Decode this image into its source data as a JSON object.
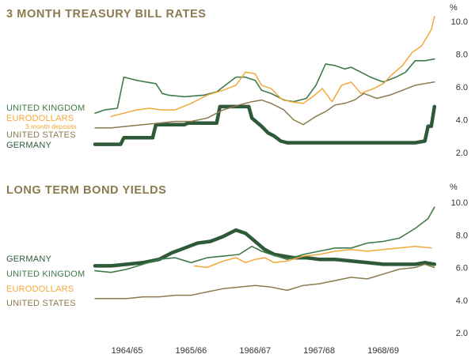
{
  "colors": {
    "uk": "#3f7a4a",
    "eurodollars": "#f2a83a",
    "us": "#8a7a4e",
    "germany": "#2f5a3a",
    "title": "#8a7a4e",
    "tick": "#333333"
  },
  "chart_data": [
    {
      "type": "line",
      "title": "3 MONTH TREASURY BILL RATES",
      "ylabel": "%",
      "ylim": [
        2.0,
        10.0
      ],
      "ytick_labels": [
        "10.0",
        "8.0",
        "6.0",
        "4.0",
        "2.0"
      ],
      "xlim": [
        1964.0,
        1969.5
      ],
      "series": [
        {
          "name": "UNITED KINGDOM",
          "color": "#3f7a4a",
          "x": [
            1964.0,
            1964.15,
            1964.35,
            1964.45,
            1964.55,
            1964.65,
            1964.8,
            1964.95,
            1965.05,
            1965.15,
            1965.4,
            1965.7,
            1965.9,
            1966.0,
            1966.2,
            1966.35,
            1966.5,
            1966.6,
            1966.75,
            1966.85,
            1966.95,
            1967.1,
            1967.3,
            1967.45,
            1967.6,
            1967.75,
            1967.9,
            1968.0,
            1968.15,
            1968.3,
            1968.5,
            1968.7,
            1968.85,
            1969.0,
            1969.15,
            1969.3
          ],
          "y": [
            4.4,
            4.6,
            4.7,
            6.6,
            6.5,
            6.4,
            6.3,
            6.2,
            5.6,
            5.5,
            5.4,
            5.5,
            5.7,
            6.0,
            6.6,
            6.6,
            6.4,
            5.8,
            5.6,
            5.4,
            5.2,
            5.1,
            5.3,
            6.1,
            7.4,
            7.3,
            7.1,
            7.2,
            6.9,
            6.6,
            6.3,
            6.6,
            6.9,
            7.6,
            7.6,
            7.7
          ]
        },
        {
          "name": "EURODOLLARS",
          "color": "#f2a83a",
          "x": [
            1964.25,
            1964.45,
            1964.65,
            1964.85,
            1965.05,
            1965.25,
            1965.5,
            1965.75,
            1966.0,
            1966.2,
            1966.35,
            1966.5,
            1966.6,
            1966.75,
            1966.9,
            1967.05,
            1967.25,
            1967.4,
            1967.55,
            1967.7,
            1967.85,
            1968.0,
            1968.15,
            1968.35,
            1968.5,
            1968.65,
            1968.8,
            1968.95,
            1969.1,
            1969.25,
            1969.3
          ],
          "y": [
            4.2,
            4.4,
            4.6,
            4.7,
            4.6,
            4.6,
            5.0,
            5.5,
            5.8,
            6.1,
            6.9,
            6.8,
            6.1,
            5.9,
            5.3,
            5.1,
            5.0,
            5.4,
            5.9,
            5.1,
            6.1,
            6.3,
            5.6,
            5.9,
            6.2,
            6.8,
            7.3,
            8.1,
            8.5,
            9.5,
            10.3
          ]
        },
        {
          "name": "UNITED STATES",
          "color": "#8a7a4e",
          "x": [
            1964.0,
            1964.25,
            1964.5,
            1964.75,
            1965.0,
            1965.25,
            1965.5,
            1965.75,
            1966.0,
            1966.25,
            1966.45,
            1966.6,
            1966.75,
            1966.85,
            1966.95,
            1967.1,
            1967.25,
            1967.45,
            1967.6,
            1967.75,
            1967.9,
            1968.05,
            1968.2,
            1968.4,
            1968.6,
            1968.8,
            1969.0,
            1969.15,
            1969.3
          ],
          "y": [
            3.5,
            3.5,
            3.6,
            3.7,
            3.8,
            3.9,
            3.9,
            4.1,
            4.6,
            4.9,
            5.1,
            5.2,
            5.0,
            4.8,
            4.6,
            4.0,
            3.7,
            4.2,
            4.5,
            4.9,
            5.0,
            5.2,
            5.6,
            5.3,
            5.5,
            5.8,
            6.1,
            6.2,
            6.3
          ]
        },
        {
          "name": "GERMANY",
          "color": "#2f5a3a",
          "x": [
            1964.0,
            1964.4,
            1964.45,
            1964.9,
            1964.95,
            1965.4,
            1965.45,
            1965.9,
            1965.95,
            1966.4,
            1966.45,
            1966.6,
            1966.7,
            1966.8,
            1966.9,
            1967.0,
            1967.05,
            1967.5,
            1968.5,
            1969.0,
            1969.15,
            1969.2,
            1969.25,
            1969.3
          ],
          "y": [
            2.5,
            2.5,
            2.9,
            2.9,
            3.7,
            3.7,
            3.8,
            3.8,
            4.8,
            4.8,
            4.1,
            3.6,
            3.2,
            3.0,
            2.7,
            2.6,
            2.6,
            2.6,
            2.6,
            2.6,
            2.7,
            3.6,
            3.6,
            4.8
          ]
        }
      ],
      "legend": [
        {
          "label": "UNITED KINGDOM",
          "color": "#3f7a4a"
        },
        {
          "label": "EURODOLLARS",
          "color": "#f2a83a",
          "sublabel": "3 month deposits"
        },
        {
          "label": "UNITED STATES",
          "color": "#8a7a4e"
        },
        {
          "label": "GERMANY",
          "color": "#2f5a3a"
        }
      ]
    },
    {
      "type": "line",
      "title": "LONG TERM BOND YIELDS",
      "ylabel": "%",
      "ylim": [
        2.0,
        10.0
      ],
      "ytick_labels": [
        "10.0",
        "8.0",
        "6.0",
        "4.0",
        "2.0"
      ],
      "xlim": [
        1964.0,
        1969.5
      ],
      "categories": [
        "1964/65",
        "1965/66",
        "1966/67",
        "1967/68",
        "1968/69"
      ],
      "series": [
        {
          "name": "GERMANY",
          "color": "#2f5a3a",
          "x": [
            1964.0,
            1964.25,
            1964.5,
            1964.75,
            1965.0,
            1965.2,
            1965.4,
            1965.6,
            1965.8,
            1966.0,
            1966.2,
            1966.35,
            1966.5,
            1966.65,
            1966.8,
            1966.95,
            1967.1,
            1967.3,
            1967.5,
            1967.75,
            1968.0,
            1968.25,
            1968.5,
            1968.75,
            1969.0,
            1969.15,
            1969.3
          ],
          "y": [
            6.1,
            6.1,
            6.2,
            6.3,
            6.5,
            6.9,
            7.2,
            7.5,
            7.6,
            7.9,
            8.3,
            8.1,
            7.6,
            7.1,
            6.8,
            6.7,
            6.6,
            6.6,
            6.5,
            6.5,
            6.4,
            6.3,
            6.2,
            6.2,
            6.2,
            6.3,
            6.2
          ]
        },
        {
          "name": "UNITED KINGDOM",
          "color": "#3f7a4a",
          "x": [
            1964.0,
            1964.25,
            1964.5,
            1964.75,
            1965.0,
            1965.25,
            1965.5,
            1965.75,
            1966.0,
            1966.25,
            1966.45,
            1966.6,
            1966.75,
            1967.0,
            1967.25,
            1967.5,
            1967.75,
            1968.0,
            1968.25,
            1968.5,
            1968.75,
            1969.0,
            1969.2,
            1969.3
          ],
          "y": [
            5.8,
            5.7,
            5.9,
            6.2,
            6.5,
            6.6,
            6.3,
            6.6,
            6.7,
            6.8,
            7.3,
            7.0,
            6.8,
            6.5,
            6.8,
            7.0,
            7.2,
            7.2,
            7.5,
            7.6,
            7.8,
            8.4,
            9.0,
            9.7
          ]
        },
        {
          "name": "EURODOLLARS",
          "color": "#f2a83a",
          "x": [
            1965.55,
            1965.75,
            1966.0,
            1966.2,
            1966.35,
            1966.5,
            1966.65,
            1966.8,
            1967.0,
            1967.25,
            1967.5,
            1967.75,
            1968.0,
            1968.25,
            1968.5,
            1968.75,
            1969.0,
            1969.25
          ],
          "y": [
            6.1,
            6.0,
            6.4,
            6.6,
            6.3,
            6.5,
            6.6,
            6.3,
            6.4,
            6.7,
            6.8,
            7.0,
            7.1,
            7.0,
            7.1,
            7.2,
            7.3,
            7.2
          ]
        },
        {
          "name": "UNITED STATES",
          "color": "#8a7a4e",
          "x": [
            1964.0,
            1964.25,
            1964.5,
            1964.75,
            1965.0,
            1965.25,
            1965.5,
            1965.75,
            1966.0,
            1966.25,
            1966.5,
            1966.75,
            1967.0,
            1967.25,
            1967.5,
            1967.75,
            1968.0,
            1968.25,
            1968.5,
            1968.75,
            1969.0,
            1969.15,
            1969.3
          ],
          "y": [
            4.1,
            4.1,
            4.1,
            4.2,
            4.2,
            4.3,
            4.3,
            4.5,
            4.7,
            4.8,
            4.9,
            4.8,
            4.6,
            4.9,
            5.0,
            5.2,
            5.4,
            5.3,
            5.6,
            5.9,
            6.0,
            6.2,
            6.0
          ]
        }
      ],
      "legend": [
        {
          "label": "GERMANY",
          "color": "#2f5a3a"
        },
        {
          "label": "UNITED KINGDOM",
          "color": "#3f7a4a"
        },
        {
          "label": "EURODOLLARS",
          "color": "#f2a83a"
        },
        {
          "label": "UNITED STATES",
          "color": "#8a7a4e"
        }
      ]
    }
  ]
}
